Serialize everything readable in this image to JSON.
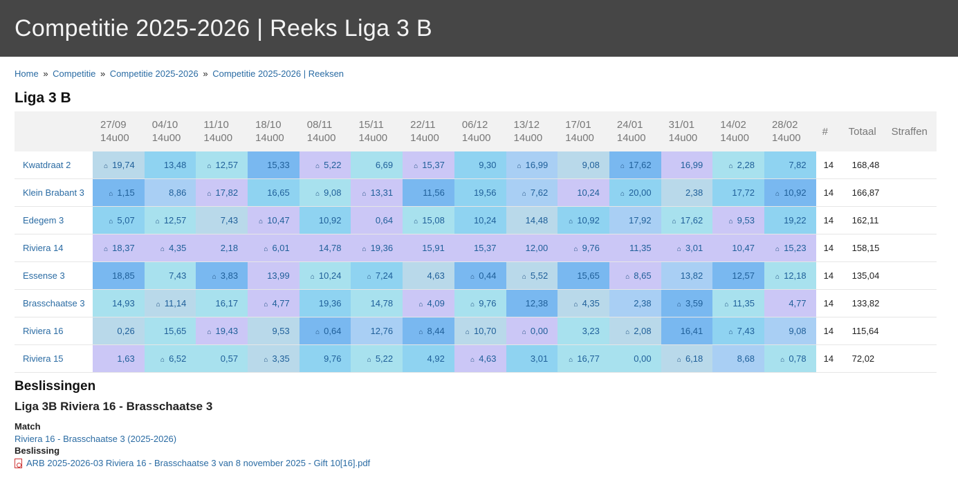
{
  "page_title": "Competitie 2025-2026 | Reeks Liga 3 B",
  "breadcrumb": [
    "Home",
    "Competitie",
    "Competitie 2025-2026",
    "Competitie 2025-2026 | Reeksen"
  ],
  "breadcrumb_sep": "»",
  "series_title": "Liga 3 B",
  "table": {
    "rounds": [
      {
        "date": "27/09",
        "time": "14u00"
      },
      {
        "date": "04/10",
        "time": "14u00"
      },
      {
        "date": "11/10",
        "time": "14u00"
      },
      {
        "date": "18/10",
        "time": "14u00"
      },
      {
        "date": "08/11",
        "time": "14u00"
      },
      {
        "date": "15/11",
        "time": "14u00"
      },
      {
        "date": "22/11",
        "time": "14u00"
      },
      {
        "date": "06/12",
        "time": "14u00"
      },
      {
        "date": "13/12",
        "time": "14u00"
      },
      {
        "date": "17/01",
        "time": "14u00"
      },
      {
        "date": "24/01",
        "time": "14u00"
      },
      {
        "date": "31/01",
        "time": "14u00"
      },
      {
        "date": "14/02",
        "time": "14u00"
      },
      {
        "date": "28/02",
        "time": "14u00"
      }
    ],
    "count_header": "#",
    "total_header": "Totaal",
    "penalty_header": "Straffen",
    "home_icon": "house-icon",
    "home_glyph": "⌂",
    "rows": [
      {
        "team": "Kwatdraat 2",
        "count": "14",
        "total": "168,48",
        "penalty": "",
        "scores": [
          {
            "v": "19,74",
            "h": true,
            "c": 1
          },
          {
            "v": "13,48",
            "h": false,
            "c": 3
          },
          {
            "v": "12,57",
            "h": true,
            "c": 2
          },
          {
            "v": "15,33",
            "h": false,
            "c": 4
          },
          {
            "v": "5,22",
            "h": true,
            "c": 5
          },
          {
            "v": "6,69",
            "h": false,
            "c": 2
          },
          {
            "v": "15,37",
            "h": true,
            "c": 5
          },
          {
            "v": "9,30",
            "h": false,
            "c": 3
          },
          {
            "v": "16,99",
            "h": true,
            "c": 6
          },
          {
            "v": "9,08",
            "h": false,
            "c": 1
          },
          {
            "v": "17,62",
            "h": true,
            "c": 4
          },
          {
            "v": "16,99",
            "h": false,
            "c": 5
          },
          {
            "v": "2,28",
            "h": true,
            "c": 2
          },
          {
            "v": "7,82",
            "h": false,
            "c": 3
          }
        ]
      },
      {
        "team": "Klein Brabant 3",
        "count": "14",
        "total": "166,87",
        "penalty": "",
        "scores": [
          {
            "v": "1,15",
            "h": true,
            "c": 4
          },
          {
            "v": "8,86",
            "h": false,
            "c": 6
          },
          {
            "v": "17,82",
            "h": true,
            "c": 5
          },
          {
            "v": "16,65",
            "h": false,
            "c": 3
          },
          {
            "v": "9,08",
            "h": true,
            "c": 2
          },
          {
            "v": "13,31",
            "h": true,
            "c": 5
          },
          {
            "v": "11,56",
            "h": false,
            "c": 4
          },
          {
            "v": "19,56",
            "h": false,
            "c": 3
          },
          {
            "v": "7,62",
            "h": true,
            "c": 6
          },
          {
            "v": "10,24",
            "h": false,
            "c": 5
          },
          {
            "v": "20,00",
            "h": true,
            "c": 3
          },
          {
            "v": "2,38",
            "h": false,
            "c": 1
          },
          {
            "v": "17,72",
            "h": false,
            "c": 3
          },
          {
            "v": "10,92",
            "h": true,
            "c": 4
          }
        ]
      },
      {
        "team": "Edegem 3",
        "count": "14",
        "total": "162,11",
        "penalty": "",
        "scores": [
          {
            "v": "5,07",
            "h": true,
            "c": 3
          },
          {
            "v": "12,57",
            "h": true,
            "c": 2
          },
          {
            "v": "7,43",
            "h": false,
            "c": 1
          },
          {
            "v": "10,47",
            "h": true,
            "c": 5
          },
          {
            "v": "10,92",
            "h": false,
            "c": 3
          },
          {
            "v": "0,64",
            "h": false,
            "c": 5
          },
          {
            "v": "15,08",
            "h": true,
            "c": 2
          },
          {
            "v": "10,24",
            "h": false,
            "c": 3
          },
          {
            "v": "14,48",
            "h": false,
            "c": 1
          },
          {
            "v": "10,92",
            "h": true,
            "c": 3
          },
          {
            "v": "17,92",
            "h": false,
            "c": 6
          },
          {
            "v": "17,62",
            "h": true,
            "c": 2
          },
          {
            "v": "9,53",
            "h": true,
            "c": 5
          },
          {
            "v": "19,22",
            "h": false,
            "c": 3
          }
        ]
      },
      {
        "team": "Riviera 14",
        "count": "14",
        "total": "158,15",
        "penalty": "",
        "scores": [
          {
            "v": "18,37",
            "h": true,
            "c": 5
          },
          {
            "v": "4,35",
            "h": true,
            "c": 5
          },
          {
            "v": "2,18",
            "h": false,
            "c": 5
          },
          {
            "v": "6,01",
            "h": true,
            "c": 5
          },
          {
            "v": "14,78",
            "h": false,
            "c": 5
          },
          {
            "v": "19,36",
            "h": true,
            "c": 5
          },
          {
            "v": "15,91",
            "h": false,
            "c": 5
          },
          {
            "v": "15,37",
            "h": false,
            "c": 5
          },
          {
            "v": "12,00",
            "h": false,
            "c": 5
          },
          {
            "v": "9,76",
            "h": true,
            "c": 5
          },
          {
            "v": "11,35",
            "h": false,
            "c": 5
          },
          {
            "v": "3,01",
            "h": true,
            "c": 5
          },
          {
            "v": "10,47",
            "h": false,
            "c": 5
          },
          {
            "v": "15,23",
            "h": true,
            "c": 5
          }
        ]
      },
      {
        "team": "Essense 3",
        "count": "14",
        "total": "135,04",
        "penalty": "",
        "scores": [
          {
            "v": "18,85",
            "h": false,
            "c": 4
          },
          {
            "v": "7,43",
            "h": false,
            "c": 2
          },
          {
            "v": "3,83",
            "h": true,
            "c": 4
          },
          {
            "v": "13,99",
            "h": false,
            "c": 5
          },
          {
            "v": "10,24",
            "h": true,
            "c": 2
          },
          {
            "v": "7,24",
            "h": true,
            "c": 3
          },
          {
            "v": "4,63",
            "h": false,
            "c": 1
          },
          {
            "v": "0,44",
            "h": true,
            "c": 4
          },
          {
            "v": "5,52",
            "h": true,
            "c": 1
          },
          {
            "v": "15,65",
            "h": false,
            "c": 4
          },
          {
            "v": "8,65",
            "h": true,
            "c": 5
          },
          {
            "v": "13,82",
            "h": false,
            "c": 6
          },
          {
            "v": "12,57",
            "h": false,
            "c": 4
          },
          {
            "v": "12,18",
            "h": true,
            "c": 2
          }
        ]
      },
      {
        "team": "Brasschaatse 3",
        "count": "14",
        "total": "133,82",
        "penalty": "",
        "scores": [
          {
            "v": "14,93",
            "h": false,
            "c": 2
          },
          {
            "v": "11,14",
            "h": true,
            "c": 1
          },
          {
            "v": "16,17",
            "h": false,
            "c": 2
          },
          {
            "v": "4,77",
            "h": true,
            "c": 5
          },
          {
            "v": "19,36",
            "h": false,
            "c": 3
          },
          {
            "v": "14,78",
            "h": false,
            "c": 2
          },
          {
            "v": "4,09",
            "h": true,
            "c": 5
          },
          {
            "v": "9,76",
            "h": true,
            "c": 2
          },
          {
            "v": "12,38",
            "h": false,
            "c": 4
          },
          {
            "v": "4,35",
            "h": true,
            "c": 1
          },
          {
            "v": "2,38",
            "h": false,
            "c": 6
          },
          {
            "v": "3,59",
            "h": true,
            "c": 4
          },
          {
            "v": "11,35",
            "h": true,
            "c": 2
          },
          {
            "v": "4,77",
            "h": false,
            "c": 5
          }
        ]
      },
      {
        "team": "Riviera 16",
        "count": "14",
        "total": "115,64",
        "penalty": "",
        "scores": [
          {
            "v": "0,26",
            "h": false,
            "c": 1
          },
          {
            "v": "15,65",
            "h": false,
            "c": 2
          },
          {
            "v": "19,43",
            "h": true,
            "c": 5
          },
          {
            "v": "9,53",
            "h": false,
            "c": 1
          },
          {
            "v": "0,64",
            "h": true,
            "c": 4
          },
          {
            "v": "12,76",
            "h": false,
            "c": 6
          },
          {
            "v": "8,44",
            "h": true,
            "c": 4
          },
          {
            "v": "10,70",
            "h": true,
            "c": 1
          },
          {
            "v": "0,00",
            "h": true,
            "c": 5
          },
          {
            "v": "3,23",
            "h": false,
            "c": 2
          },
          {
            "v": "2,08",
            "h": true,
            "c": 1
          },
          {
            "v": "16,41",
            "h": false,
            "c": 4
          },
          {
            "v": "7,43",
            "h": true,
            "c": 3
          },
          {
            "v": "9,08",
            "h": false,
            "c": 6
          }
        ]
      },
      {
        "team": "Riviera 15",
        "count": "14",
        "total": "72,02",
        "penalty": "",
        "scores": [
          {
            "v": "1,63",
            "h": false,
            "c": 5
          },
          {
            "v": "6,52",
            "h": true,
            "c": 2
          },
          {
            "v": "0,57",
            "h": false,
            "c": 2
          },
          {
            "v": "3,35",
            "h": true,
            "c": 1
          },
          {
            "v": "9,76",
            "h": false,
            "c": 3
          },
          {
            "v": "5,22",
            "h": true,
            "c": 2
          },
          {
            "v": "4,92",
            "h": false,
            "c": 3
          },
          {
            "v": "4,63",
            "h": true,
            "c": 5
          },
          {
            "v": "3,01",
            "h": false,
            "c": 3
          },
          {
            "v": "16,77",
            "h": true,
            "c": 2
          },
          {
            "v": "0,00",
            "h": false,
            "c": 2
          },
          {
            "v": "6,18",
            "h": true,
            "c": 1
          },
          {
            "v": "8,68",
            "h": false,
            "c": 6
          },
          {
            "v": "0,78",
            "h": true,
            "c": 2
          }
        ]
      }
    ]
  },
  "decisions": {
    "heading": "Beslissingen",
    "match_title": "Liga 3B Riviera 16 - Brasschaatse 3",
    "match_label": "Match",
    "match_link": "Riviera 16 - Brasschaatse 3 (2025-2026)",
    "decision_label": "Beslissing",
    "file_icon": "pdf-file-icon",
    "file_link": "ARB 2025-2026-03 Riviera 16 - Brasschaatse 3 van 8 november 2025 - Gift 10[16].pdf"
  },
  "colors": {
    "header_bg": "#464646",
    "link": "#2a6ba3",
    "cell_palette": [
      "#b9d9ea",
      "#a8e1ee",
      "#8fd3f1",
      "#79b8f0",
      "#cbc7f6",
      "#a9cff4"
    ]
  }
}
